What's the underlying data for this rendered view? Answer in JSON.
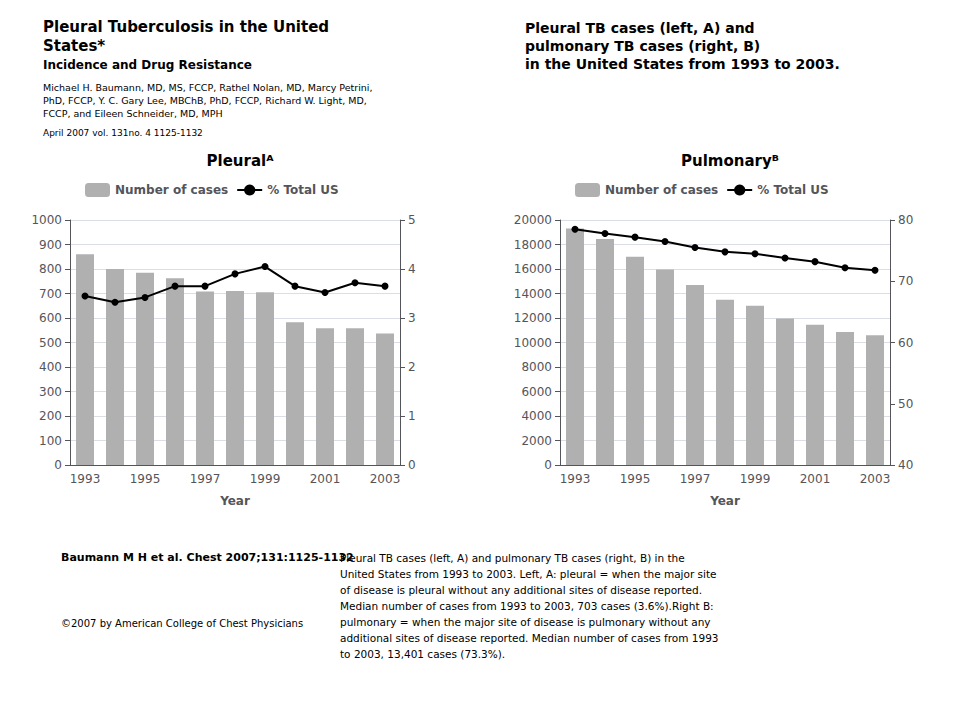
{
  "title": "Pleural Tuberculosis in the United\nStates*",
  "subtitle": "Incidence and Drug Resistance",
  "annotations": [
    "Michael H. Baumann, MD, MS, FCCP, Rathel Nolan, MD, Marcy Petrini,\nPhD, FCCP, Y. C. Gary Lee, MBChB, PhD, FCCP, Richard W. Light, MD,\nFCCP, and Eileen Schneider, MD, MPH",
    "April 2007 vol. 131no. 4 1125-1132",
    "Pleural TB cases (left, A) and\npulmonary TB cases (right, B)\nin the United States from 1993 to 2003.",
    "Baumann M H et al. Chest 2007;131:1125-1132",
    "©2007 by American College of Chest Physicians",
    "Pleural TB cases (left, A) and pulmonary TB cases (right, B) in the\nUnited States from 1993 to 2003. Left, A: pleural = when the major site\nof disease is pleural without any additional sites of disease reported.\nMedian number of cases from 1993 to 2003, 703 cases (3.6%).Right B:\npulmonary = when the major site of disease is pulmonary without any\nadditional sites of disease reported. Median number of cases from 1993\nto 2003, 13,401 cases (73.3%)."
  ],
  "chart_data": [
    {
      "type": "bar",
      "title": "Pleuralᴬ",
      "xlabel": "Year",
      "categories": [
        "1993",
        null,
        "1995",
        null,
        "1997",
        null,
        "1999",
        null,
        "2001",
        null,
        "2003"
      ],
      "series": [
        {
          "name": "Number of cases",
          "type": "bar",
          "color": "#b0b0b0",
          "values": [
            860,
            800,
            785,
            762,
            708,
            710,
            705,
            583,
            558,
            558,
            537
          ]
        },
        {
          "name": "% Total US",
          "type": "line",
          "axis": "y2",
          "color": "#000000",
          "marker": "o",
          "values": [
            3.45,
            3.32,
            3.42,
            3.65,
            3.65,
            3.9,
            4.05,
            3.65,
            3.52,
            3.72,
            3.65
          ]
        }
      ],
      "ylim": [
        0,
        1000
      ],
      "yticks": [
        0,
        100,
        200,
        300,
        400,
        500,
        600,
        700,
        800,
        900,
        1000
      ],
      "y2lim": [
        0,
        5
      ],
      "y2ticks": [
        0,
        1,
        2,
        3,
        4,
        5
      ],
      "grid": true,
      "legend": "top"
    },
    {
      "type": "bar",
      "title": "Pulmonaryᴮ",
      "xlabel": "Year",
      "categories": [
        "1993",
        null,
        "1995",
        null,
        "1997",
        null,
        "1999",
        null,
        "2001",
        null,
        "2003"
      ],
      "series": [
        {
          "name": "Number of cases",
          "type": "bar",
          "color": "#b0b0b0",
          "values": [
            19300,
            18450,
            17000,
            15950,
            14700,
            13500,
            13000,
            11950,
            11450,
            10850,
            10600
          ]
        },
        {
          "name": "% Total US",
          "type": "line",
          "axis": "y2",
          "color": "#000000",
          "marker": "o",
          "values": [
            78.5,
            77.8,
            77.2,
            76.5,
            75.5,
            74.8,
            74.5,
            73.8,
            73.2,
            72.2,
            71.8
          ]
        }
      ],
      "ylim": [
        0,
        20000
      ],
      "yticks": [
        0,
        2000,
        4000,
        6000,
        8000,
        10000,
        12000,
        14000,
        16000,
        18000,
        20000
      ],
      "y2lim": [
        40,
        80
      ],
      "y2ticks": [
        40,
        50,
        60,
        70,
        80
      ],
      "grid": true,
      "legend": "top"
    }
  ]
}
